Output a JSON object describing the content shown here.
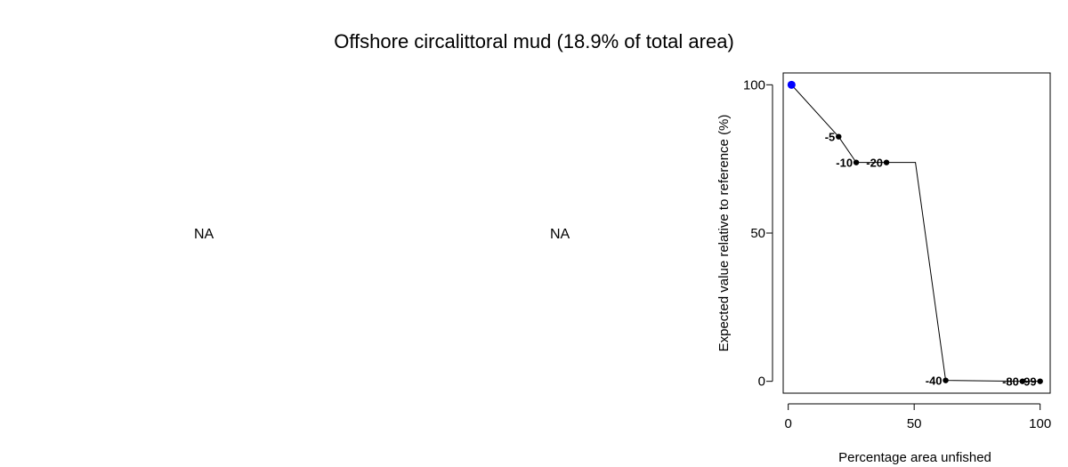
{
  "title": "Offshore circalittoral mud (18.9% of total area)",
  "panels": {
    "left": {
      "text": "NA"
    },
    "middle": {
      "text": "NA"
    }
  },
  "colors": {
    "reference_point": "#0000ff",
    "points": "#000000",
    "line": "#000000"
  },
  "chart_data": {
    "type": "line",
    "xlabel": "Percentage area unfished",
    "ylabel": "Expected value relative to reference (%)",
    "xlim": [
      -2,
      104
    ],
    "ylim": [
      -4,
      104
    ],
    "x_ticks": [
      0,
      50,
      100
    ],
    "y_ticks": [
      0,
      50,
      100
    ],
    "x_tick_labels": [
      "0",
      "50",
      "100"
    ],
    "y_tick_labels": [
      "0",
      "50",
      "100"
    ],
    "grid": false,
    "reference_point": {
      "x": 1.3,
      "y": 100
    },
    "points": [
      {
        "x": 20,
        "y": 82.5,
        "label": "-5"
      },
      {
        "x": 27,
        "y": 73.8,
        "label": "-10"
      },
      {
        "x": 39,
        "y": 73.8,
        "label": "-20"
      },
      {
        "x": 62.5,
        "y": 0.3,
        "label": "-40"
      },
      {
        "x": 93,
        "y": 0,
        "label": "-80"
      },
      {
        "x": 100,
        "y": 0,
        "label": "-99"
      }
    ],
    "line": [
      {
        "x": 1.3,
        "y": 100
      },
      {
        "x": 20,
        "y": 82.5
      },
      {
        "x": 27,
        "y": 73.8
      },
      {
        "x": 39,
        "y": 73.8
      },
      {
        "x": 50.5,
        "y": 73.8
      },
      {
        "x": 62.5,
        "y": 0.3
      },
      {
        "x": 93,
        "y": 0
      },
      {
        "x": 100,
        "y": 0
      }
    ]
  }
}
